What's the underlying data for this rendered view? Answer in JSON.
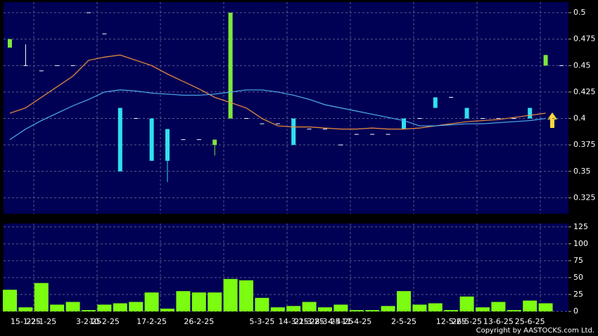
{
  "chart_data": [
    {
      "type": "candlestick",
      "open": [
        0.467,
        0.45,
        0.445,
        0.45,
        0.45,
        0.5,
        0.48,
        0.41,
        0.4,
        0.4,
        0.39,
        0.38,
        0.38,
        0.375,
        0.4,
        0.4,
        0.395,
        0.395,
        0.4,
        0.39,
        0.39,
        0.375,
        0.385,
        0.385,
        0.385,
        0.4,
        0.4,
        0.42,
        0.42,
        0.41,
        0.4,
        0.4,
        0.4,
        0.41,
        0.45,
        0.45
      ],
      "high": [
        0.475,
        0.47,
        0.445,
        0.45,
        0.45,
        0.5,
        0.48,
        0.41,
        0.4,
        0.4,
        0.39,
        0.38,
        0.38,
        0.38,
        0.5,
        0.4,
        0.395,
        0.395,
        0.4,
        0.39,
        0.39,
        0.375,
        0.385,
        0.385,
        0.385,
        0.4,
        0.4,
        0.42,
        0.42,
        0.41,
        0.4,
        0.4,
        0.4,
        0.41,
        0.46,
        0.45
      ],
      "low": [
        0.467,
        0.45,
        0.445,
        0.45,
        0.45,
        0.5,
        0.48,
        0.35,
        0.4,
        0.36,
        0.34,
        0.38,
        0.38,
        0.365,
        0.4,
        0.4,
        0.395,
        0.395,
        0.375,
        0.39,
        0.39,
        0.375,
        0.385,
        0.385,
        0.385,
        0.39,
        0.4,
        0.41,
        0.42,
        0.4,
        0.4,
        0.4,
        0.4,
        0.4,
        0.45,
        0.45
      ],
      "close": [
        0.475,
        0.45,
        0.445,
        0.45,
        0.45,
        0.5,
        0.48,
        0.35,
        0.4,
        0.36,
        0.36,
        0.38,
        0.38,
        0.38,
        0.5,
        0.4,
        0.395,
        0.395,
        0.375,
        0.39,
        0.39,
        0.375,
        0.385,
        0.385,
        0.385,
        0.39,
        0.4,
        0.41,
        0.42,
        0.4,
        0.4,
        0.4,
        0.4,
        0.4,
        0.46,
        0.45
      ],
      "up_color": "#7ee83a",
      "down_color": "#30e0f0",
      "flat_color": "#ffffff",
      "series": [
        {
          "color": "#f0903a",
          "values": [
            0.405,
            0.41,
            0.42,
            0.43,
            0.44,
            0.455,
            0.458,
            0.46,
            0.455,
            0.45,
            0.442,
            0.435,
            0.428,
            0.42,
            0.415,
            0.41,
            0.4,
            0.393,
            0.392,
            0.392,
            0.391,
            0.39,
            0.39,
            0.391,
            0.39,
            0.39,
            0.391,
            0.393,
            0.395,
            0.397,
            0.398,
            0.399,
            0.401,
            0.403,
            0.405,
            null
          ]
        },
        {
          "color": "#4fb0f0",
          "values": [
            0.38,
            0.39,
            0.398,
            0.405,
            0.412,
            0.418,
            0.425,
            0.427,
            0.426,
            0.424,
            0.423,
            0.422,
            0.422,
            0.423,
            0.425,
            0.427,
            0.427,
            0.425,
            0.422,
            0.418,
            0.413,
            0.41,
            0.407,
            0.404,
            0.401,
            0.398,
            0.393,
            0.393,
            0.394,
            0.395,
            0.395,
            0.396,
            0.397,
            0.398,
            0.4,
            null
          ]
        }
      ],
      "ylim": [
        0.31,
        0.51
      ],
      "yticks": [
        0.325,
        0.35,
        0.375,
        0.4,
        0.425,
        0.45,
        0.475,
        0.5
      ],
      "grid": true
    },
    {
      "type": "bar",
      "categories": [
        null,
        "15-1-25",
        "22-1-25",
        null,
        null,
        "3-2-25",
        "10-2-25",
        null,
        null,
        "17-2-25",
        null,
        null,
        "26-2-25",
        null,
        null,
        null,
        "5-3-25",
        null,
        "14-3-25",
        "21-3-25",
        "28-3-25",
        "4-4-25",
        "11-4-25",
        null,
        null,
        "2-5-25",
        null,
        null,
        "12-5-25",
        "26-5-25",
        null,
        "13-6-25",
        null,
        "25-6-25",
        null,
        null
      ],
      "values": [
        32,
        6,
        42,
        10,
        14,
        2,
        10,
        12,
        14,
        28,
        4,
        30,
        28,
        28,
        48,
        46,
        20,
        6,
        8,
        14,
        6,
        10,
        2,
        2,
        8,
        30,
        10,
        12,
        2,
        22,
        6,
        14,
        2,
        16,
        12,
        null
      ],
      "color": "#7cfc10",
      "ylim": [
        0,
        130
      ],
      "yticks": [
        0,
        25,
        50,
        75,
        100,
        125
      ],
      "grid": true
    }
  ],
  "copyright": "Copyright by AASTOCKS.com Ltd."
}
